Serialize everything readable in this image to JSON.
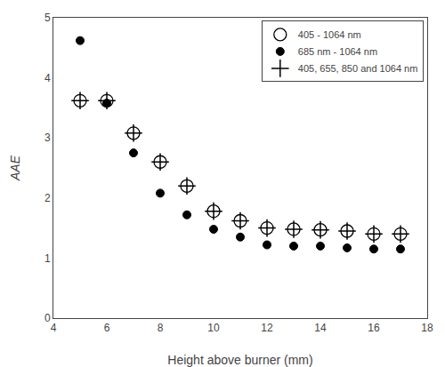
{
  "chart_data": {
    "type": "scatter",
    "x_label": "Height above burner (mm)",
    "y_label": "AAE",
    "series": [
      {
        "name": "405 - 1064 nm",
        "color": "black",
        "marker": "circle-open",
        "x": [
          5,
          6,
          7,
          8,
          9,
          10,
          11,
          12,
          13,
          14,
          15,
          16,
          17
        ],
        "values": [
          3.62,
          3.62,
          3.08,
          2.6,
          2.2,
          1.78,
          1.62,
          1.5,
          1.48,
          1.47,
          1.45,
          1.4,
          1.4
        ]
      },
      {
        "name": "685 nm - 1064 nm",
        "color": "black",
        "marker": "circle",
        "x": [
          5,
          6,
          7,
          8,
          9,
          10,
          11,
          12,
          13,
          14,
          15,
          16,
          17
        ],
        "values": [
          4.62,
          3.58,
          2.75,
          2.08,
          1.72,
          1.48,
          1.35,
          1.22,
          1.2,
          1.2,
          1.17,
          1.15,
          1.15
        ]
      },
      {
        "name": "405, 655, 850 and 1064 nm",
        "color": "black",
        "marker": "cross",
        "x": [
          5,
          6,
          7,
          8,
          9,
          10,
          11,
          12,
          13,
          14,
          15,
          16,
          17
        ],
        "values": [
          3.62,
          3.62,
          3.08,
          2.6,
          2.2,
          1.78,
          1.62,
          1.5,
          1.48,
          1.47,
          1.45,
          1.4,
          1.4
        ]
      }
    ],
    "xlim": [
      4,
      18
    ],
    "ylim": [
      0,
      5
    ],
    "xticks": [
      4,
      6,
      8,
      10,
      12,
      14,
      16,
      18
    ],
    "yticks": [
      0,
      1,
      2,
      3,
      4,
      5
    ],
    "grid": false,
    "legend": "upper right"
  }
}
